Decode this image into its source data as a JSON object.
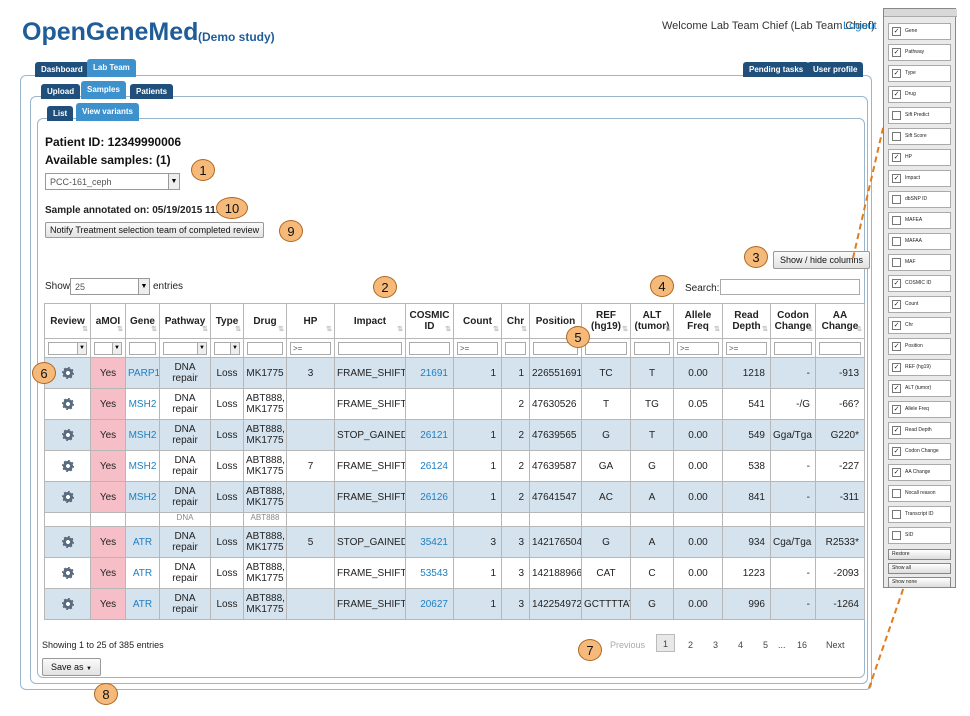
{
  "header": {
    "brand": "OpenGeneMed",
    "study": "(Demo study)",
    "welcome": "Welcome Lab Team Chief  (Lab Team Chief)",
    "logout": "Logout"
  },
  "tabs_top": [
    {
      "label": "Dashboard"
    },
    {
      "label": "Lab Team",
      "active": true
    }
  ],
  "tabs_right": [
    {
      "label": "Pending tasks"
    },
    {
      "label": "User profile"
    }
  ],
  "tabs_second": [
    {
      "label": "Upload"
    },
    {
      "label": "Samples",
      "active": true
    },
    {
      "label": "Patients"
    }
  ],
  "tabs_third": [
    {
      "label": "List"
    },
    {
      "label": "View variants",
      "active": true
    }
  ],
  "patient": {
    "id_text": "Patient ID: 12349990006",
    "available": "Available samples: (1)",
    "sample_selected": "PCC-161_ceph",
    "annotated_on": "Sample annotated on: 05/19/2015 11:37",
    "notify_button": "Notify Treatment selection team of completed review"
  },
  "table_controls": {
    "show_label": "Show",
    "entries_value": "25",
    "entries_label": "entries",
    "search_label": "Search:",
    "show_hide_columns": "Show / hide columns"
  },
  "columns": [
    "Review",
    "aMOI",
    "Gene",
    "Pathway",
    "Type",
    "Drug",
    "HP",
    "Impact",
    "COSMIC ID",
    "Count",
    "Chr",
    "Position",
    "REF (hg19)",
    "ALT (tumor)",
    "Allele Freq",
    "Read Depth",
    "Codon Change",
    "AA Change"
  ],
  "filter_ops": {
    "gte": ">="
  },
  "rows": [
    {
      "amoi": "Yes",
      "gene": "PARP1",
      "pathway": "DNA repair",
      "type": "Loss",
      "drug": "MK1775",
      "hp": "3",
      "impact": "FRAME_SHIFT",
      "cosmic": "21691",
      "count": "1",
      "chr": "1",
      "position": "226551691",
      "ref": "TC",
      "alt": "T",
      "af": "0.00",
      "depth": "1218",
      "codon": "-",
      "aa": "-913"
    },
    {
      "amoi": "Yes",
      "gene": "MSH2",
      "pathway": "DNA repair",
      "type": "Loss",
      "drug": "ABT888, MK1775",
      "hp": "",
      "impact": "FRAME_SHIFT",
      "cosmic": "",
      "count": "",
      "chr": "2",
      "position": "47630526",
      "ref": "T",
      "alt": "TG",
      "af": "0.05",
      "depth": "541",
      "codon": "-/G",
      "aa": "-66?"
    },
    {
      "amoi": "Yes",
      "gene": "MSH2",
      "pathway": "DNA repair",
      "type": "Loss",
      "drug": "ABT888, MK1775",
      "hp": "",
      "impact": "STOP_GAINED",
      "cosmic": "26121",
      "count": "1",
      "chr": "2",
      "position": "47639565",
      "ref": "G",
      "alt": "T",
      "af": "0.00",
      "depth": "549",
      "codon": "Gga/Tga",
      "aa": "G220*"
    },
    {
      "amoi": "Yes",
      "gene": "MSH2",
      "pathway": "DNA repair",
      "type": "Loss",
      "drug": "ABT888, MK1775",
      "hp": "7",
      "impact": "FRAME_SHIFT",
      "cosmic": "26124",
      "count": "1",
      "chr": "2",
      "position": "47639587",
      "ref": "GA",
      "alt": "G",
      "af": "0.00",
      "depth": "538",
      "codon": "-",
      "aa": "-227"
    },
    {
      "amoi": "Yes",
      "gene": "MSH2",
      "pathway": "DNA repair",
      "type": "Loss",
      "drug": "ABT888, MK1775",
      "hp": "",
      "impact": "FRAME_SHIFT",
      "cosmic": "26126",
      "count": "1",
      "chr": "2",
      "position": "47641547",
      "ref": "AC",
      "alt": "A",
      "af": "0.00",
      "depth": "841",
      "codon": "-",
      "aa": "-311"
    }
  ],
  "filler_row": {
    "pathway": "DNA",
    "drug": "ABT888"
  },
  "rows_after": [
    {
      "amoi": "Yes",
      "gene": "ATR",
      "pathway": "DNA repair",
      "type": "Loss",
      "drug": "ABT888, MK1775",
      "hp": "5",
      "impact": "STOP_GAINED",
      "cosmic": "35421",
      "count": "3",
      "chr": "3",
      "position": "142176504",
      "ref": "G",
      "alt": "A",
      "af": "0.00",
      "depth": "934",
      "codon": "Cga/Tga",
      "aa": "R2533*"
    },
    {
      "amoi": "Yes",
      "gene": "ATR",
      "pathway": "DNA repair",
      "type": "Loss",
      "drug": "ABT888, MK1775",
      "hp": "",
      "impact": "FRAME_SHIFT",
      "cosmic": "53543",
      "count": "1",
      "chr": "3",
      "position": "142188966",
      "ref": "CAT",
      "alt": "C",
      "af": "0.00",
      "depth": "1223",
      "codon": "-",
      "aa": "-2093"
    },
    {
      "amoi": "Yes",
      "gene": "ATR",
      "pathway": "DNA repair",
      "type": "Loss",
      "drug": "ABT888, MK1775",
      "hp": "",
      "impact": "FRAME_SHIFT",
      "cosmic": "20627",
      "count": "1",
      "chr": "3",
      "position": "142254972",
      "ref": "GCTTTTAT",
      "alt": "G",
      "af": "0.00",
      "depth": "996",
      "codon": "-",
      "aa": "-1264"
    }
  ],
  "footer": {
    "showing": "Showing 1 to 25 of 385 entries",
    "save_as": "Save as",
    "previous": "Previous",
    "pages": [
      "1",
      "2",
      "3",
      "4",
      "5"
    ],
    "ellipsis": "...",
    "last_page": "16",
    "next": "Next"
  },
  "callouts": [
    "1",
    "2",
    "3",
    "4",
    "5",
    "6",
    "7",
    "8",
    "9",
    "10"
  ],
  "column_panel": {
    "items": [
      {
        "label": "Gene",
        "checked": true
      },
      {
        "label": "Pathway",
        "checked": true
      },
      {
        "label": "Type",
        "checked": true
      },
      {
        "label": "Drug",
        "checked": true
      },
      {
        "label": "Sift Predict",
        "checked": false
      },
      {
        "label": "Sift Score",
        "checked": false
      },
      {
        "label": "HP",
        "checked": true
      },
      {
        "label": "Impact",
        "checked": true
      },
      {
        "label": "dbSNP ID",
        "checked": false
      },
      {
        "label": "MAFEA",
        "checked": false
      },
      {
        "label": "MAFAA",
        "checked": false
      },
      {
        "label": "MAF",
        "checked": false
      },
      {
        "label": "COSMIC ID",
        "checked": true
      },
      {
        "label": "Count",
        "checked": true
      },
      {
        "label": "Chr",
        "checked": true
      },
      {
        "label": "Position",
        "checked": true
      },
      {
        "label": "REF (hg19)",
        "checked": true
      },
      {
        "label": "ALT (tumor)",
        "checked": true
      },
      {
        "label": "Allele Freq",
        "checked": true
      },
      {
        "label": "Read Depth",
        "checked": true
      },
      {
        "label": "Codon Change",
        "checked": true
      },
      {
        "label": "AA Change",
        "checked": true
      },
      {
        "label": "Nocall reason",
        "checked": false
      },
      {
        "label": "Transcript ID",
        "checked": false
      },
      {
        "label": "SID",
        "checked": false
      }
    ],
    "buttons": [
      "Restore",
      "Show all",
      "Show none"
    ]
  },
  "colors": {
    "brand": "#1f5d99",
    "tab": "#1f4f7a",
    "tab_active": "#3d91cc",
    "row_alt": "#d5e3ee",
    "amoi_cell": "#f6bec6",
    "callout": "#f5ba7a",
    "link": "#1d7fc2"
  },
  "icons": {
    "review": "gear-icon",
    "dropdown": "chevron-down-icon"
  }
}
